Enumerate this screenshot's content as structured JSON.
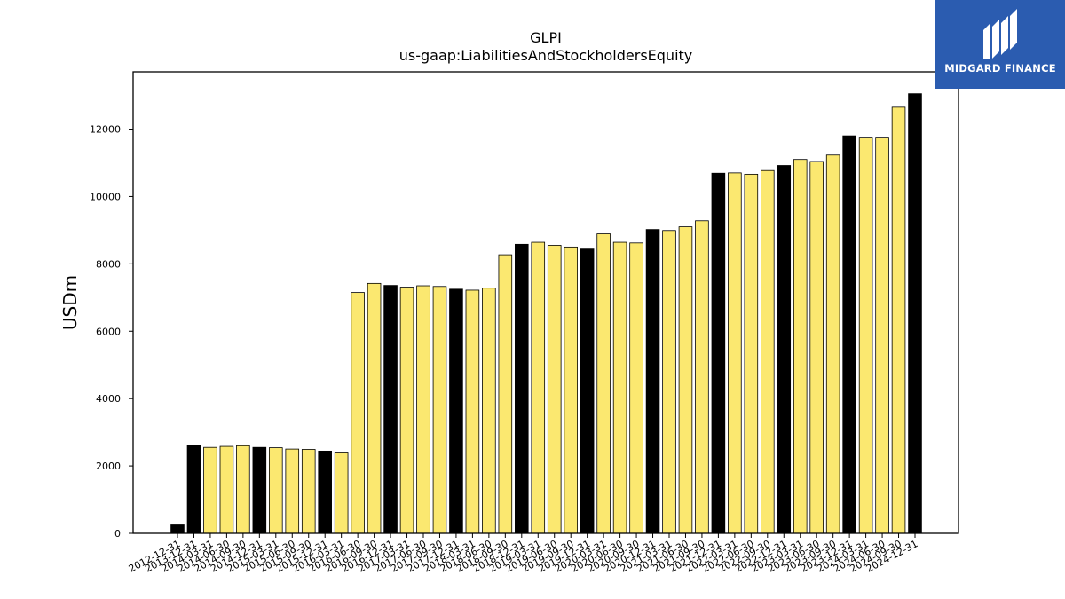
{
  "chart_data": {
    "type": "bar",
    "title": "GLPI",
    "subtitle": "us-gaap:LiabilitiesAndStockholdersEquity",
    "xlabel": "",
    "ylabel": "USDm",
    "ylim": [
      0,
      13700
    ],
    "yticks": [
      0,
      2000,
      4000,
      6000,
      8000,
      10000,
      12000
    ],
    "grid": false,
    "colors": {
      "annual": "#000000",
      "quarterly": "#fbe870",
      "edge": "#000000"
    },
    "categories": [
      "2012-12-31",
      "2013-12-31",
      "2014-03-31",
      "2014-06-30",
      "2014-09-30",
      "2014-12-31",
      "2015-03-31",
      "2015-06-30",
      "2015-09-30",
      "2015-12-31",
      "2016-03-31",
      "2016-06-30",
      "2016-09-30",
      "2016-12-31",
      "2017-03-31",
      "2017-06-30",
      "2017-09-30",
      "2017-12-31",
      "2018-03-31",
      "2018-06-30",
      "2018-09-30",
      "2018-12-31",
      "2019-03-31",
      "2019-06-30",
      "2019-09-30",
      "2019-12-31",
      "2020-03-31",
      "2020-06-30",
      "2020-09-30",
      "2020-12-31",
      "2021-03-31",
      "2021-06-30",
      "2021-09-30",
      "2021-12-31",
      "2022-03-31",
      "2022-06-30",
      "2022-09-30",
      "2022-12-31",
      "2023-03-31",
      "2023-06-30",
      "2023-09-30",
      "2023-12-31",
      "2024-03-31",
      "2024-06-30",
      "2024-09-30",
      "2024-12-31"
    ],
    "values": [
      250,
      2610,
      2550,
      2580,
      2600,
      2550,
      2540,
      2500,
      2490,
      2440,
      2410,
      7150,
      7420,
      7360,
      7310,
      7350,
      7330,
      7250,
      7220,
      7280,
      8270,
      8580,
      8640,
      8550,
      8500,
      8440,
      8890,
      8640,
      8620,
      9020,
      8990,
      9100,
      9280,
      10690,
      10700,
      10660,
      10770,
      10920,
      11100,
      11040,
      11230,
      11800,
      11760,
      11760,
      12650,
      13050
    ],
    "period": [
      "annual",
      "annual",
      "quarterly",
      "quarterly",
      "quarterly",
      "annual",
      "quarterly",
      "quarterly",
      "quarterly",
      "annual",
      "quarterly",
      "quarterly",
      "quarterly",
      "annual",
      "quarterly",
      "quarterly",
      "quarterly",
      "annual",
      "quarterly",
      "quarterly",
      "quarterly",
      "annual",
      "quarterly",
      "quarterly",
      "quarterly",
      "annual",
      "quarterly",
      "quarterly",
      "quarterly",
      "annual",
      "quarterly",
      "quarterly",
      "quarterly",
      "annual",
      "quarterly",
      "quarterly",
      "quarterly",
      "annual",
      "quarterly",
      "quarterly",
      "quarterly",
      "annual",
      "quarterly",
      "quarterly",
      "quarterly",
      "annual"
    ]
  },
  "logo": {
    "text": "MIDGARD FINANCE",
    "color": "#2b5cb0"
  }
}
